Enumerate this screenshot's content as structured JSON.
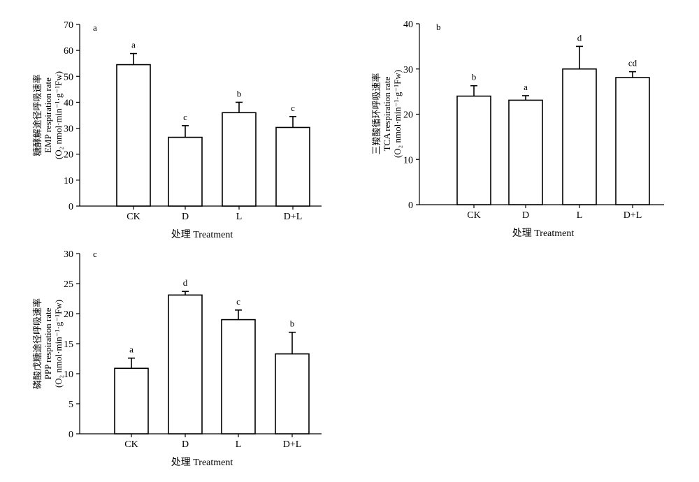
{
  "chart_data": [
    {
      "type": "bar",
      "panel_label": "a",
      "categories": [
        "CK",
        "D",
        "L",
        "D+L"
      ],
      "values": [
        54.5,
        26.5,
        36,
        30.3
      ],
      "errors": [
        4.3,
        4.5,
        4.0,
        4.2
      ],
      "sig_letters": [
        "a",
        "c",
        "b",
        "c"
      ],
      "ylim": [
        0,
        70
      ],
      "yticks": [
        0,
        10,
        20,
        30,
        40,
        50,
        60,
        70
      ],
      "ylabel_cn": "糖酵解途径呼吸速率",
      "ylabel_en": "EMP respiration rate",
      "ylabel_unit": "(O₂ nmol·min⁻¹·g⁻¹Fw)",
      "xlabel": "处理 Treatment"
    },
    {
      "type": "bar",
      "panel_label": "b",
      "categories": [
        "CK",
        "D",
        "L",
        "D+L"
      ],
      "values": [
        24,
        23.1,
        30,
        28.1
      ],
      "errors": [
        2.3,
        1.0,
        5.0,
        1.3
      ],
      "sig_letters": [
        "b",
        "a",
        "d",
        "cd"
      ],
      "ylim": [
        0,
        40
      ],
      "yticks": [
        0,
        10,
        20,
        30,
        40
      ],
      "ylabel_cn": "三羧酸循环呼吸速率",
      "ylabel_en": "TCA respiration rate",
      "ylabel_unit": "(O₂ nmol·min⁻¹·g⁻¹Fw)",
      "xlabel": "处理 Treatment"
    },
    {
      "type": "bar",
      "panel_label": "c",
      "categories": [
        "CK",
        "D",
        "L",
        "D+L"
      ],
      "values": [
        10.9,
        23.1,
        19,
        13.3
      ],
      "errors": [
        1.7,
        0.6,
        1.6,
        3.6
      ],
      "sig_letters": [
        "a",
        "d",
        "c",
        "b"
      ],
      "ylim": [
        0,
        30
      ],
      "yticks": [
        0,
        5,
        10,
        15,
        20,
        25,
        30
      ],
      "ylabel_cn": "磷酸戊糖途径呼吸速率",
      "ylabel_en": "PPP respiration rate",
      "ylabel_unit": "(O₂ nmol·min⁻¹·g⁻¹Fw)",
      "xlabel": "处理 Treatment"
    }
  ]
}
